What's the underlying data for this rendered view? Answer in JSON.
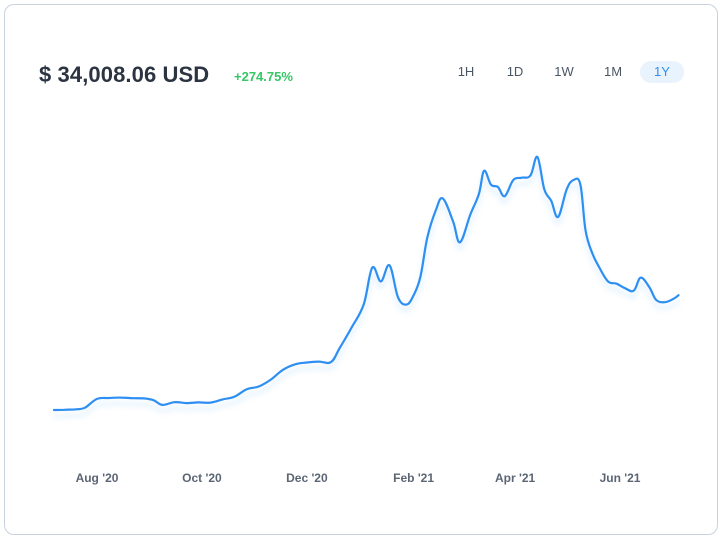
{
  "header": {
    "price": "$ 34,008.06 USD",
    "change": "+274.75%"
  },
  "ranges": [
    {
      "label": "1H",
      "active": false
    },
    {
      "label": "1D",
      "active": false
    },
    {
      "label": "1W",
      "active": false
    },
    {
      "label": "1M",
      "active": false
    },
    {
      "label": "1Y",
      "active": true
    }
  ],
  "colors": {
    "line": "#2f8ff2",
    "positive": "#37c766",
    "active_range_bg": "#e9f3fd"
  },
  "chart_data": {
    "type": "line",
    "title": "",
    "xlabel": "",
    "ylabel": "",
    "x_ticks": [
      "Aug '20",
      "Oct '20",
      "Dec '20",
      "Feb '21",
      "Apr '21",
      "Jun '21"
    ],
    "x_tick_dates": [
      "2020-08-01",
      "2020-10-01",
      "2020-12-01",
      "2021-02-01",
      "2021-04-01",
      "2021-06-01"
    ],
    "grid": false,
    "legend": "none",
    "series": [
      {
        "values": [
          [
            "2020-07-07",
            9100
          ],
          [
            "2020-07-13",
            9150
          ],
          [
            "2020-07-20",
            9250
          ],
          [
            "2020-07-25",
            9600
          ],
          [
            "2020-08-01",
            11500
          ],
          [
            "2020-08-08",
            11700
          ],
          [
            "2020-08-15",
            11800
          ],
          [
            "2020-08-22",
            11650
          ],
          [
            "2020-08-29",
            11600
          ],
          [
            "2020-09-03",
            11200
          ],
          [
            "2020-09-08",
            10200
          ],
          [
            "2020-09-15",
            10800
          ],
          [
            "2020-09-22",
            10600
          ],
          [
            "2020-09-29",
            10750
          ],
          [
            "2020-10-06",
            10700
          ],
          [
            "2020-10-13",
            11400
          ],
          [
            "2020-10-20",
            12000
          ],
          [
            "2020-10-27",
            13600
          ],
          [
            "2020-11-03",
            14200
          ],
          [
            "2020-11-10",
            15700
          ],
          [
            "2020-11-17",
            17800
          ],
          [
            "2020-11-24",
            19000
          ],
          [
            "2020-12-01",
            19400
          ],
          [
            "2020-12-08",
            19600
          ],
          [
            "2020-12-15",
            19500
          ],
          [
            "2020-12-20",
            22500
          ],
          [
            "2020-12-27",
            27000
          ],
          [
            "2021-01-03",
            32000
          ],
          [
            "2021-01-08",
            40000
          ],
          [
            "2021-01-13",
            37000
          ],
          [
            "2021-01-18",
            40500
          ],
          [
            "2021-01-23",
            33500
          ],
          [
            "2021-01-28",
            32000
          ],
          [
            "2021-02-01",
            34000
          ],
          [
            "2021-02-05",
            38000
          ],
          [
            "2021-02-09",
            46500
          ],
          [
            "2021-02-14",
            52500
          ],
          [
            "2021-02-18",
            55000
          ],
          [
            "2021-02-24",
            50000
          ],
          [
            "2021-02-28",
            45500
          ],
          [
            "2021-03-06",
            51500
          ],
          [
            "2021-03-11",
            56000
          ],
          [
            "2021-03-14",
            61000
          ],
          [
            "2021-03-18",
            58000
          ],
          [
            "2021-03-22",
            57500
          ],
          [
            "2021-03-26",
            55500
          ],
          [
            "2021-03-31",
            59000
          ],
          [
            "2021-04-05",
            59500
          ],
          [
            "2021-04-10",
            60000
          ],
          [
            "2021-04-14",
            64000
          ],
          [
            "2021-04-18",
            57000
          ],
          [
            "2021-04-22",
            54500
          ],
          [
            "2021-04-26",
            51000
          ],
          [
            "2021-05-01",
            57000
          ],
          [
            "2021-05-05",
            59000
          ],
          [
            "2021-05-09",
            58000
          ],
          [
            "2021-05-12",
            48000
          ],
          [
            "2021-05-16",
            43000
          ],
          [
            "2021-05-20",
            40000
          ],
          [
            "2021-05-25",
            37000
          ],
          [
            "2021-05-30",
            36500
          ],
          [
            "2021-06-04",
            35500
          ],
          [
            "2021-06-09",
            35000
          ],
          [
            "2021-06-13",
            37800
          ],
          [
            "2021-06-18",
            35800
          ],
          [
            "2021-06-22",
            33000
          ],
          [
            "2021-06-27",
            32500
          ],
          [
            "2021-07-02",
            33200
          ],
          [
            "2021-07-05",
            34008
          ]
        ]
      }
    ]
  }
}
